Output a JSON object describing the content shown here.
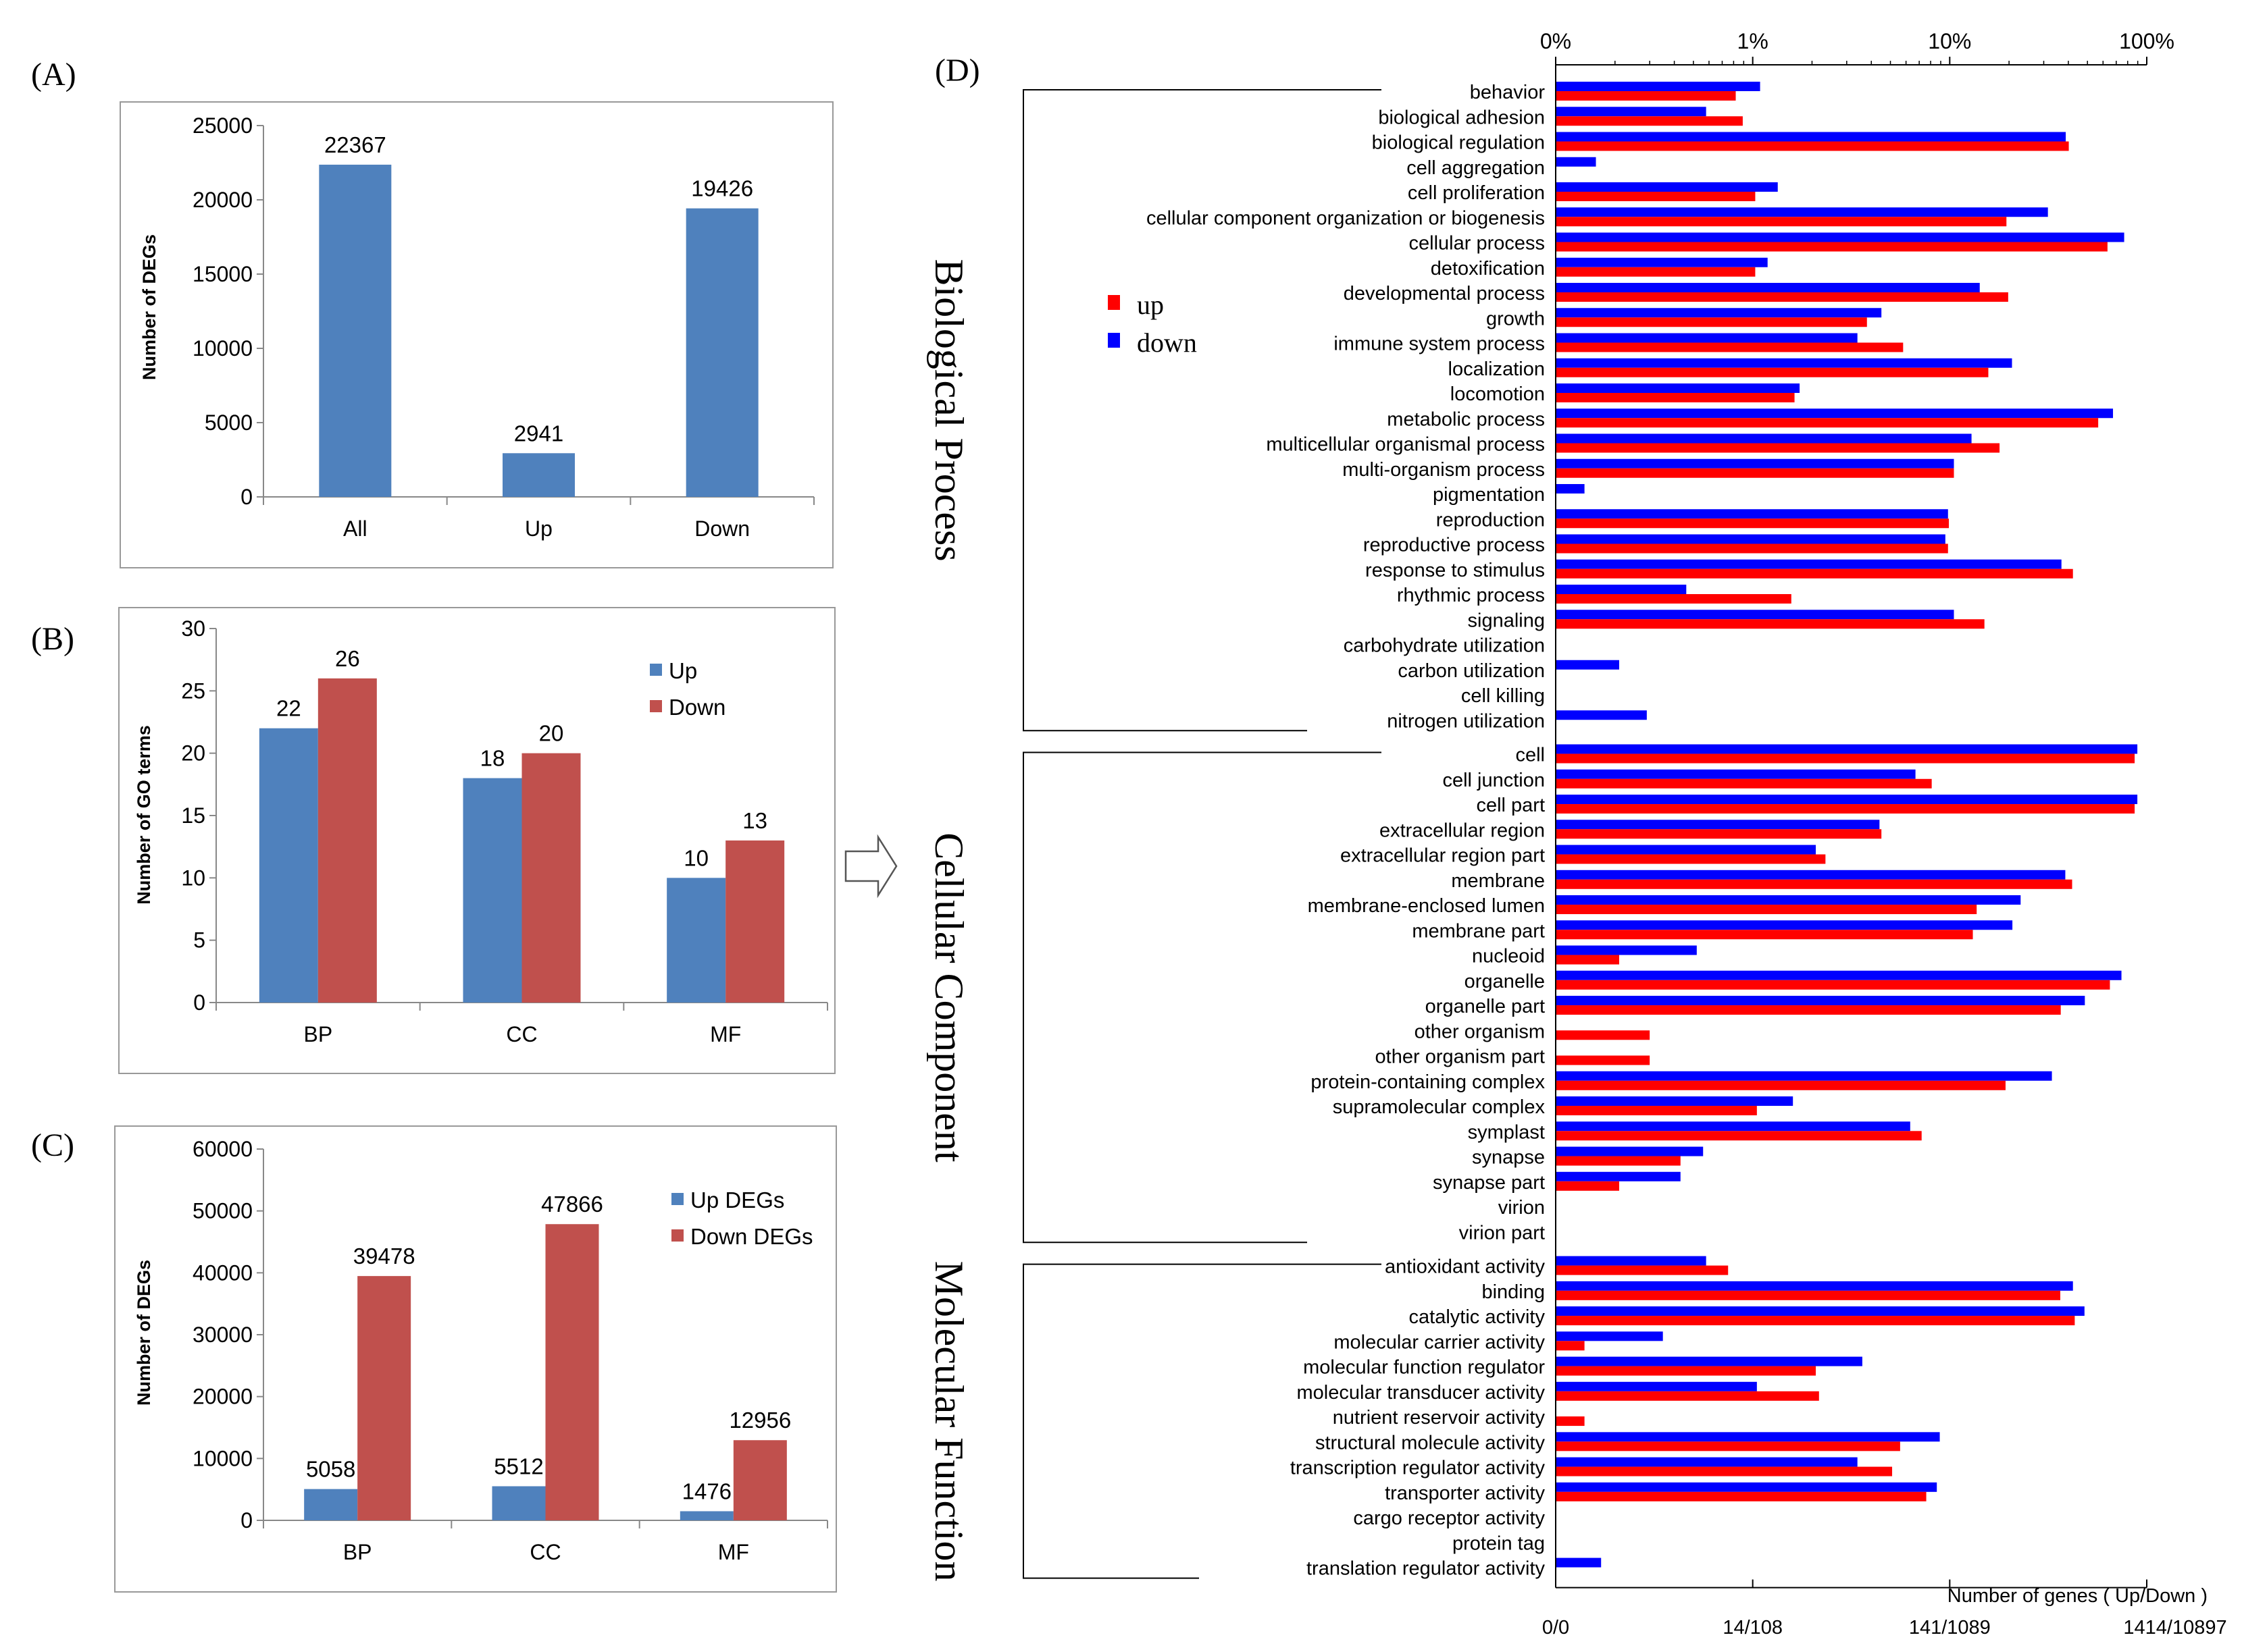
{
  "colors": {
    "blue_panel": "#4F81BD",
    "red_panel": "#C0504D",
    "up_red": "#FF0000",
    "down_blue": "#0000FF"
  },
  "chart_data": [
    {
      "id": "A",
      "panel_label": "(A)",
      "type": "bar",
      "ylabel": "Number of DEGs",
      "categories": [
        "All",
        "Up",
        "Down"
      ],
      "values": [
        22367,
        2941,
        19426
      ],
      "value_labels": [
        "22367",
        "2941",
        "19426"
      ],
      "ylim": [
        0,
        25000
      ],
      "yticks": [
        "0",
        "5000",
        "10000",
        "15000",
        "20000",
        "25000"
      ],
      "color": "#4F81BD"
    },
    {
      "id": "B",
      "panel_label": "(B)",
      "type": "bar",
      "ylabel": "Number of GO terms",
      "categories": [
        "BP",
        "CC",
        "MF"
      ],
      "series": [
        {
          "name": "Up",
          "values": [
            22,
            18,
            10
          ],
          "labels": [
            "22",
            "18",
            "10"
          ],
          "color": "#4F81BD"
        },
        {
          "name": "Down",
          "values": [
            26,
            20,
            13
          ],
          "labels": [
            "26",
            "20",
            "13"
          ],
          "color": "#C0504D"
        }
      ],
      "ylim": [
        0,
        30
      ],
      "yticks": [
        "0",
        "5",
        "10",
        "15",
        "20",
        "25",
        "30"
      ],
      "legend": "top-right"
    },
    {
      "id": "C",
      "panel_label": "(C)",
      "type": "bar",
      "ylabel": "Number of DEGs",
      "categories": [
        "BP",
        "CC",
        "MF"
      ],
      "series": [
        {
          "name": "Up DEGs",
          "values": [
            5058,
            5512,
            1476
          ],
          "labels": [
            "5058",
            "5512",
            "1476"
          ],
          "color": "#4F81BD"
        },
        {
          "name": "Down DEGs",
          "values": [
            39478,
            47866,
            12956
          ],
          "labels": [
            "39478",
            "47866",
            "12956"
          ],
          "color": "#C0504D"
        }
      ],
      "ylim": [
        0,
        60000
      ],
      "yticks": [
        "0",
        "10000",
        "20000",
        "30000",
        "40000",
        "50000",
        "60000"
      ],
      "legend": "top-right"
    },
    {
      "id": "D",
      "panel_label": "(D)",
      "type": "bar",
      "orientation": "horizontal",
      "scale": "log",
      "xlim_percent": [
        0.1,
        100
      ],
      "top_ticks": [
        "0%",
        "1%",
        "10%",
        "100%"
      ],
      "bottom_title": "Number of genes ( Up/Down )",
      "bottom_ticks": [
        "0/0",
        "14/108",
        "141/1089",
        "1414/10897"
      ],
      "legend": [
        {
          "name": "up",
          "color": "#FF0000"
        },
        {
          "name": "down",
          "color": "#0000FF"
        }
      ],
      "series_order": [
        "down",
        "up"
      ],
      "groups": [
        {
          "name": "Biological Process",
          "terms": [
            {
              "term": "behavior",
              "down": 1.09,
              "up": 0.82
            },
            {
              "term": "biological adhesion",
              "down": 0.58,
              "up": 0.89
            },
            {
              "term": "biological regulation",
              "down": 38.8,
              "up": 40.2
            },
            {
              "term": "cell aggregation",
              "down": 0.16,
              "up": 0
            },
            {
              "term": "cell proliferation",
              "down": 1.34,
              "up": 1.03
            },
            {
              "term": "cellular component organization or biogenesis",
              "down": 31.5,
              "up": 19.4
            },
            {
              "term": "cellular process",
              "down": 76.8,
              "up": 63.2
            },
            {
              "term": "detoxification",
              "down": 1.19,
              "up": 1.03
            },
            {
              "term": "developmental process",
              "down": 14.2,
              "up": 19.8
            },
            {
              "term": "growth",
              "down": 4.5,
              "up": 3.8
            },
            {
              "term": "immune system process",
              "down": 3.4,
              "up": 5.8
            },
            {
              "term": "localization",
              "down": 20.7,
              "up": 15.7
            },
            {
              "term": "locomotion",
              "down": 1.73,
              "up": 1.63
            },
            {
              "term": "metabolic process",
              "down": 67.4,
              "up": 56.7
            },
            {
              "term": "multicellular organismal process",
              "down": 12.9,
              "up": 17.9
            },
            {
              "term": "multi-organism process",
              "down": 10.5,
              "up": 10.5
            },
            {
              "term": "pigmentation",
              "down": 0.14,
              "up": 0
            },
            {
              "term": "reproduction",
              "down": 9.8,
              "up": 9.9
            },
            {
              "term": "reproductive process",
              "down": 9.5,
              "up": 9.8
            },
            {
              "term": "response to stimulus",
              "down": 36.9,
              "up": 42.2
            },
            {
              "term": "rhythmic process",
              "down": 0.46,
              "up": 1.57
            },
            {
              "term": "signaling",
              "down": 10.5,
              "up": 15.0
            },
            {
              "term": "carbohydrate utilization",
              "down": 0,
              "up": 0
            },
            {
              "term": "carbon utilization",
              "down": 0.21,
              "up": 0
            },
            {
              "term": "cell killing",
              "down": 0,
              "up": 0
            },
            {
              "term": "nitrogen utilization",
              "down": 0.29,
              "up": 0
            }
          ]
        },
        {
          "name": "Cellular Component",
          "terms": [
            {
              "term": "cell",
              "down": 89.6,
              "up": 86.8
            },
            {
              "term": "cell junction",
              "down": 6.7,
              "up": 8.1
            },
            {
              "term": "cell part",
              "down": 89.6,
              "up": 86.8
            },
            {
              "term": "extracellular region",
              "down": 4.4,
              "up": 4.5
            },
            {
              "term": "extracellular region part",
              "down": 2.09,
              "up": 2.34
            },
            {
              "term": "membrane",
              "down": 38.6,
              "up": 41.8
            },
            {
              "term": "membrane-enclosed lumen",
              "down": 22.9,
              "up": 13.7
            },
            {
              "term": "membrane part",
              "down": 20.8,
              "up": 13.1
            },
            {
              "term": "nucleoid",
              "down": 0.52,
              "up": 0.21
            },
            {
              "term": "organelle",
              "down": 74.4,
              "up": 65.0
            },
            {
              "term": "organelle part",
              "down": 48.5,
              "up": 36.6
            },
            {
              "term": "other organism",
              "down": 0,
              "up": 0.3
            },
            {
              "term": "other organism part",
              "down": 0,
              "up": 0.3
            },
            {
              "term": "protein-containing complex",
              "down": 33.0,
              "up": 19.2
            },
            {
              "term": "supramolecular complex",
              "down": 1.6,
              "up": 1.05
            },
            {
              "term": "symplast",
              "down": 6.3,
              "up": 7.2
            },
            {
              "term": "synapse",
              "down": 0.56,
              "up": 0.43
            },
            {
              "term": "synapse part",
              "down": 0.43,
              "up": 0.21
            },
            {
              "term": "virion",
              "down": 0,
              "up": 0
            },
            {
              "term": "virion part",
              "down": 0,
              "up": 0
            }
          ]
        },
        {
          "name": "Molecular Function",
          "terms": [
            {
              "term": "antioxidant activity",
              "down": 0.58,
              "up": 0.75
            },
            {
              "term": "binding",
              "down": 42.2,
              "up": 36.4
            },
            {
              "term": "catalytic activity",
              "down": 48.3,
              "up": 43.1
            },
            {
              "term": "molecular carrier activity",
              "down": 0.35,
              "up": 0.14
            },
            {
              "term": "molecular function regulator",
              "down": 3.6,
              "up": 2.09
            },
            {
              "term": "molecular transducer activity",
              "down": 1.05,
              "up": 2.17
            },
            {
              "term": "nutrient reservoir activity",
              "down": 0,
              "up": 0.14
            },
            {
              "term": "structural molecule activity",
              "down": 8.9,
              "up": 5.6
            },
            {
              "term": "transcription regulator activity",
              "down": 3.4,
              "up": 5.1
            },
            {
              "term": "transporter activity",
              "down": 8.6,
              "up": 7.6
            },
            {
              "term": "cargo receptor activity",
              "down": 0,
              "up": 0
            },
            {
              "term": "protein tag",
              "down": 0,
              "up": 0
            },
            {
              "term": "translation regulator activity",
              "down": 0.17,
              "up": 0
            }
          ]
        }
      ]
    }
  ]
}
